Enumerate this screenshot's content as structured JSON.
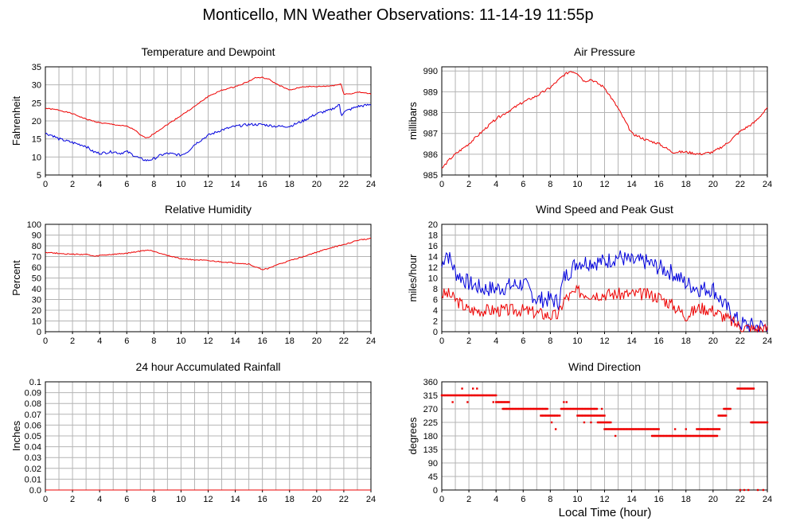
{
  "page": {
    "title": "Monticello, MN Weather Observations: 11-14-19 11:55p",
    "bottom_xlabel": "Local Time (hour)"
  },
  "colors": {
    "red": "#ee0000",
    "blue": "#0000dd",
    "grid": "#b4b4b4",
    "axis": "#000000"
  },
  "chart_data": [
    {
      "id": "temperature",
      "type": "line",
      "title": "Temperature and Dewpoint",
      "ylabel": "Fahrenheit",
      "xlim": [
        0,
        24
      ],
      "ylim": [
        5,
        35
      ],
      "xticks": [
        0,
        2,
        4,
        6,
        8,
        10,
        12,
        14,
        16,
        18,
        20,
        22,
        24
      ],
      "yticks": [
        5,
        10,
        15,
        20,
        25,
        30,
        35
      ],
      "grid": true,
      "series": [
        {
          "color": "red",
          "noise": 0.15,
          "x": [
            0,
            1,
            2,
            3,
            4,
            5,
            6,
            6.6,
            7,
            7.5,
            8,
            9,
            10,
            11,
            12,
            13,
            14,
            15,
            15.5,
            16,
            16.5,
            17,
            18,
            19,
            20,
            21,
            21.5,
            21.8,
            22,
            22.5,
            23,
            24
          ],
          "y": [
            23.5,
            23,
            22,
            20.5,
            19.5,
            19,
            18.5,
            17.5,
            16,
            15.2,
            16.5,
            19,
            21.5,
            24,
            26.8,
            28.5,
            29.5,
            31,
            32,
            32,
            31.5,
            30.3,
            28.5,
            29.5,
            29.5,
            29.7,
            30,
            30.2,
            27.5,
            27.5,
            28,
            27.5
          ]
        },
        {
          "color": "blue",
          "noise": 0.35,
          "x": [
            0,
            0.5,
            1,
            2,
            3,
            3.5,
            4,
            5,
            5.5,
            6,
            6.5,
            7,
            7.5,
            8,
            8.5,
            9,
            10,
            10.5,
            11,
            12,
            13,
            14,
            15,
            16,
            17,
            18,
            19,
            20,
            21,
            21.7,
            21.8,
            22,
            23,
            24
          ],
          "y": [
            16.5,
            16,
            15,
            14,
            13,
            11.5,
            11,
            11.5,
            11,
            11.5,
            10.5,
            9.5,
            9,
            9.5,
            10.5,
            11,
            10.5,
            11.5,
            13.5,
            16,
            17.5,
            18.5,
            19,
            19,
            18.5,
            18.5,
            20,
            22,
            23,
            24.5,
            21.5,
            22.5,
            24,
            24.5
          ]
        }
      ]
    },
    {
      "id": "pressure",
      "type": "line",
      "title": "Air Pressure",
      "ylabel": "millibars",
      "xlim": [
        0,
        24
      ],
      "ylim": [
        985,
        990.2
      ],
      "xticks": [
        0,
        2,
        4,
        6,
        8,
        10,
        12,
        14,
        16,
        18,
        20,
        22,
        24
      ],
      "yticks": [
        985,
        986,
        987,
        988,
        989,
        990
      ],
      "grid": true,
      "series": [
        {
          "color": "red",
          "noise": 0.06,
          "x": [
            0,
            0.5,
            1,
            2,
            3,
            4,
            5,
            6,
            7,
            8,
            9,
            9.5,
            10,
            10.5,
            11,
            11.5,
            12,
            13,
            14,
            15,
            16,
            17,
            18,
            19,
            20,
            21,
            22,
            23,
            24
          ],
          "y": [
            985.3,
            985.7,
            986,
            986.5,
            987.1,
            987.7,
            988.1,
            988.5,
            988.8,
            989.2,
            989.8,
            990,
            989.9,
            989.5,
            989.6,
            989.4,
            989.2,
            988.2,
            987,
            986.7,
            986.5,
            986.1,
            986.1,
            986,
            986.1,
            986.5,
            987.1,
            987.5,
            988.2
          ]
        }
      ]
    },
    {
      "id": "humidity",
      "type": "line",
      "title": "Relative Humidity",
      "ylabel": "Percent",
      "xlim": [
        0,
        24
      ],
      "ylim": [
        0,
        100
      ],
      "xticks": [
        0,
        2,
        4,
        6,
        8,
        10,
        12,
        14,
        16,
        18,
        20,
        22,
        24
      ],
      "yticks": [
        0,
        10,
        20,
        30,
        40,
        50,
        60,
        70,
        80,
        90,
        100
      ],
      "grid": true,
      "series": [
        {
          "color": "red",
          "noise": 0.5,
          "x": [
            0,
            1,
            2,
            3,
            3.7,
            4,
            5,
            6,
            7,
            7.5,
            8,
            9,
            10,
            11,
            12,
            13,
            14,
            15,
            15.5,
            16,
            16.5,
            17,
            18,
            19,
            20,
            21,
            22,
            23,
            24
          ],
          "y": [
            74,
            73,
            72,
            72,
            70,
            71,
            72,
            73,
            75,
            76,
            75,
            71,
            68,
            67,
            66,
            65,
            64,
            63,
            60,
            58,
            59,
            62,
            66,
            70,
            74,
            78,
            81,
            85,
            87
          ]
        }
      ]
    },
    {
      "id": "wind_speed",
      "type": "line",
      "title": "Wind Speed and Peak Gust",
      "ylabel": "miles/hour",
      "xlim": [
        0,
        24
      ],
      "ylim": [
        0,
        20
      ],
      "xticks": [
        0,
        2,
        4,
        6,
        8,
        10,
        12,
        14,
        16,
        18,
        20,
        22,
        24
      ],
      "yticks": [
        0,
        2,
        4,
        6,
        8,
        10,
        12,
        14,
        16,
        18,
        20
      ],
      "grid": true,
      "series": [
        {
          "color": "blue",
          "noise": 1.6,
          "seed": 7,
          "x": [
            0,
            0.3,
            0.7,
            1,
            2,
            3,
            4,
            5,
            6,
            7,
            8,
            8.6,
            9,
            10,
            11,
            12,
            13,
            14,
            15,
            16,
            17,
            18,
            19,
            20,
            20.8,
            21.5,
            22,
            23,
            24
          ],
          "y": [
            12,
            15,
            13,
            11,
            9,
            8,
            8,
            8.5,
            9,
            6,
            6,
            5.5,
            10,
            13,
            13,
            13,
            14,
            13,
            13,
            12,
            11,
            9,
            8,
            8,
            5,
            3,
            1.5,
            1,
            1
          ]
        },
        {
          "color": "red",
          "noise": 1.2,
          "seed": 3,
          "x": [
            0,
            0.5,
            1,
            2,
            3,
            4,
            5,
            6,
            7,
            8,
            8.6,
            9,
            10,
            11,
            12,
            13,
            14,
            15,
            16,
            17,
            18,
            19,
            20,
            21,
            22,
            23,
            24
          ],
          "y": [
            7,
            7,
            6,
            4,
            4,
            4,
            4,
            4,
            3.5,
            3,
            3,
            6,
            7.5,
            7,
            7,
            7,
            7,
            7,
            6.5,
            5,
            3,
            4.5,
            4,
            2.5,
            1,
            0.5,
            0.5
          ]
        }
      ]
    },
    {
      "id": "rainfall",
      "type": "line",
      "title": "24 hour Accumulated Rainfall",
      "ylabel": "Inches",
      "xlim": [
        0,
        24
      ],
      "ylim": [
        0,
        0.1
      ],
      "xticks": [
        0,
        2,
        4,
        6,
        8,
        10,
        12,
        14,
        16,
        18,
        20,
        22,
        24
      ],
      "yticks": [
        0.0,
        0.01,
        0.02,
        0.03,
        0.04,
        0.05,
        0.06,
        0.07,
        0.08,
        0.09,
        0.1
      ],
      "ytick_labels": [
        "0.0",
        "0.01",
        "0.02",
        "0.03",
        "0.04",
        "0.05",
        "0.06",
        "0.07",
        "0.08",
        "0.09",
        "0.1"
      ],
      "grid": true,
      "series": [
        {
          "color": "red",
          "noise": 0,
          "x": [
            0,
            24
          ],
          "y": [
            0,
            0
          ]
        }
      ]
    },
    {
      "id": "wind_direction",
      "type": "scatter",
      "title": "Wind Direction",
      "ylabel": "degrees",
      "xlim": [
        0,
        24
      ],
      "ylim": [
        0,
        360
      ],
      "xticks": [
        0,
        2,
        4,
        6,
        8,
        10,
        12,
        14,
        16,
        18,
        20,
        22,
        24
      ],
      "yticks": [
        0,
        45,
        90,
        135,
        180,
        225,
        270,
        315,
        360
      ],
      "grid": true,
      "segments": [
        {
          "x0": 0,
          "x1": 4,
          "y": 315
        },
        {
          "x0": 4,
          "x1": 5,
          "y": 292.5
        },
        {
          "x0": 4.5,
          "x1": 7.8,
          "y": 270
        },
        {
          "x0": 7.3,
          "x1": 8.6,
          "y": 247.5
        },
        {
          "x0": 8.8,
          "x1": 11.5,
          "y": 270
        },
        {
          "x0": 10,
          "x1": 12,
          "y": 247.5
        },
        {
          "x0": 11.5,
          "x1": 12.5,
          "y": 225
        },
        {
          "x0": 12,
          "x1": 16,
          "y": 202.5
        },
        {
          "x0": 15.5,
          "x1": 20.3,
          "y": 180
        },
        {
          "x0": 18.8,
          "x1": 20.5,
          "y": 202.5
        },
        {
          "x0": 20.4,
          "x1": 21,
          "y": 247.5
        },
        {
          "x0": 20.8,
          "x1": 21.3,
          "y": 270
        },
        {
          "x0": 21.8,
          "x1": 23,
          "y": 337.5
        },
        {
          "x0": 22.8,
          "x1": 24,
          "y": 225
        }
      ],
      "points": [
        {
          "x": 0.8,
          "y": 292.5
        },
        {
          "x": 1.5,
          "y": 337.5
        },
        {
          "x": 1.9,
          "y": 292.5
        },
        {
          "x": 2.3,
          "y": 337.5
        },
        {
          "x": 2.6,
          "y": 337.5
        },
        {
          "x": 3.8,
          "y": 292.5
        },
        {
          "x": 8.1,
          "y": 225
        },
        {
          "x": 8.4,
          "y": 202.5
        },
        {
          "x": 9.0,
          "y": 292.5
        },
        {
          "x": 9.2,
          "y": 292.5
        },
        {
          "x": 8.7,
          "y": 247.5
        },
        {
          "x": 10.5,
          "y": 225
        },
        {
          "x": 11.0,
          "y": 225
        },
        {
          "x": 11.8,
          "y": 270
        },
        {
          "x": 12.8,
          "y": 180
        },
        {
          "x": 17.2,
          "y": 202.5
        },
        {
          "x": 18.0,
          "y": 202.5
        },
        {
          "x": 19.6,
          "y": 202.5
        },
        {
          "x": 22.0,
          "y": 0
        },
        {
          "x": 22.3,
          "y": 0
        },
        {
          "x": 22.6,
          "y": 0
        },
        {
          "x": 23.3,
          "y": 0
        },
        {
          "x": 23.7,
          "y": 0
        },
        {
          "x": 22.9,
          "y": 225
        }
      ]
    }
  ]
}
